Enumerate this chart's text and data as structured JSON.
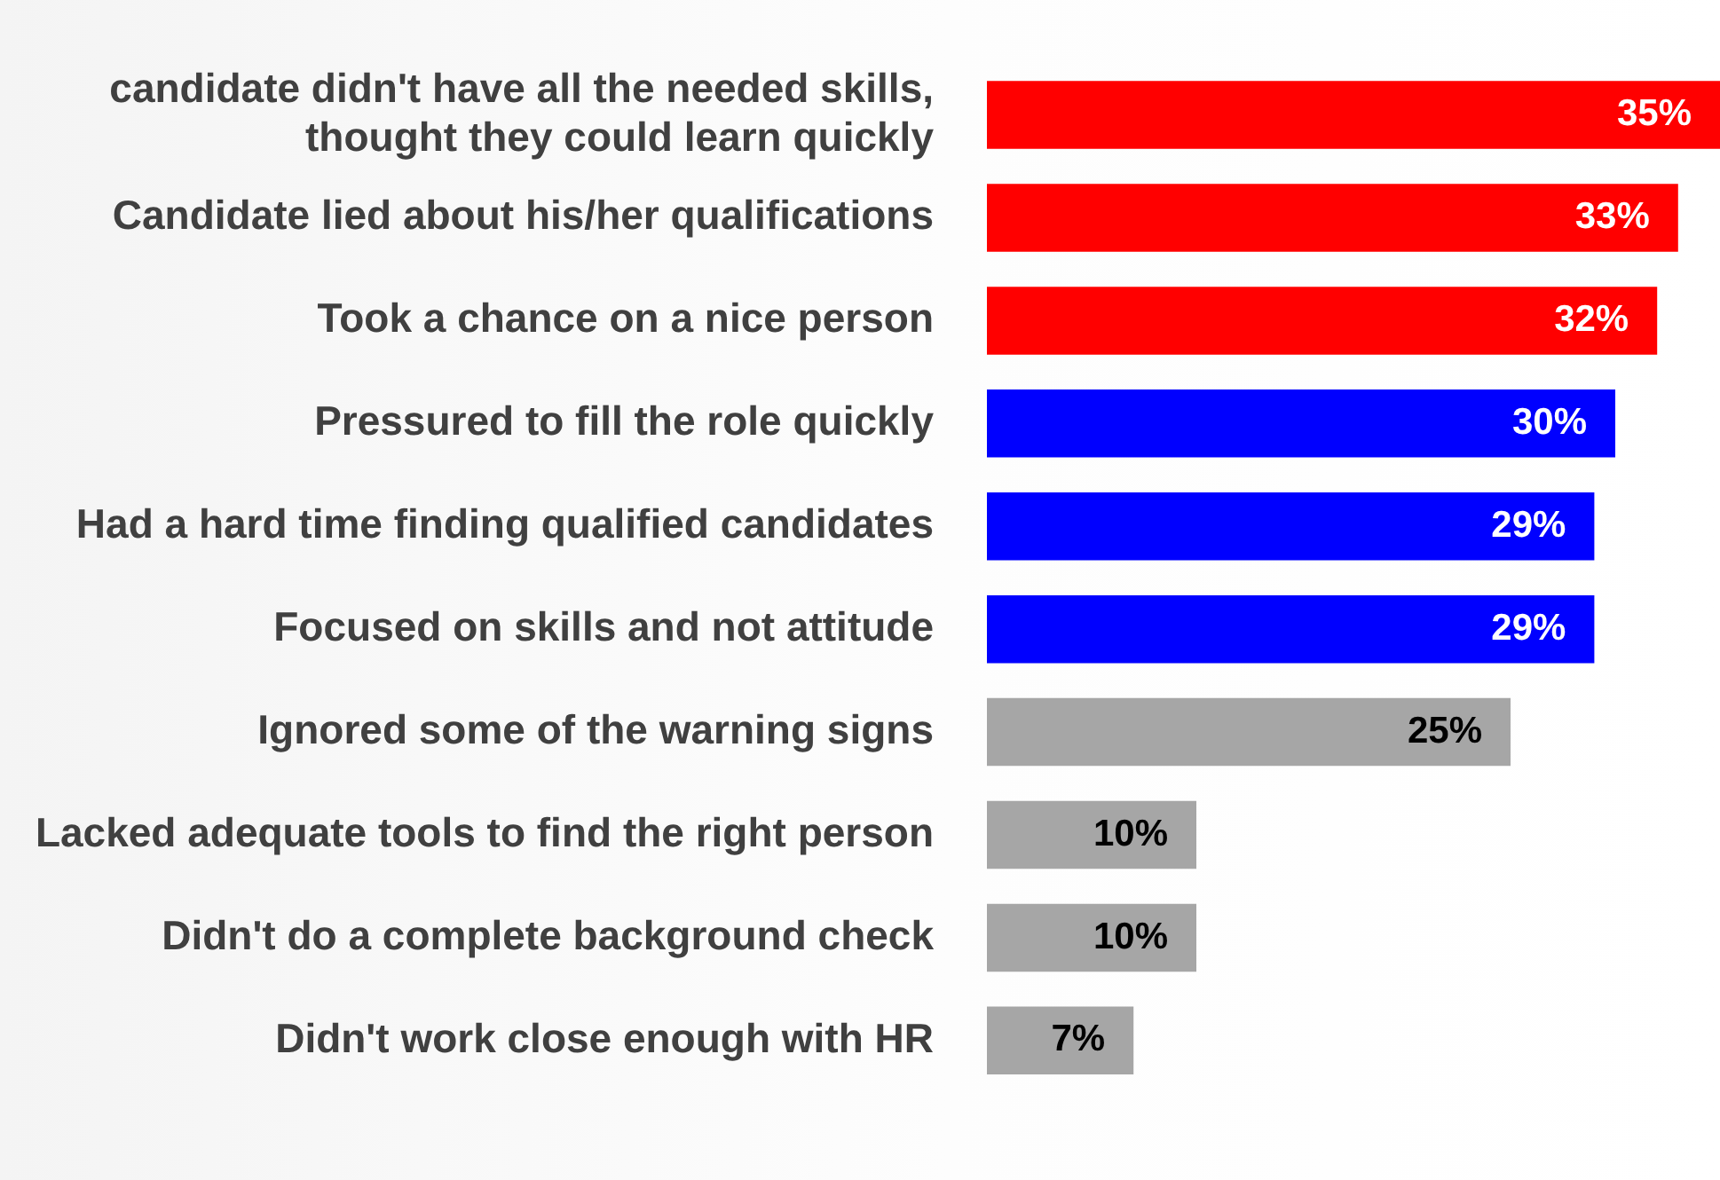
{
  "chart_data": {
    "type": "bar",
    "orientation": "horizontal",
    "legend": false,
    "grid": false,
    "categories": [
      "candidate didn't have all the needed skills, thought they could learn quickly",
      "Candidate lied about his/her qualifications",
      "Took a chance on a nice person",
      "Pressured to fill the role quickly",
      "Had a hard time finding qualified candidates",
      "Focused on skills and not attitude",
      "Ignored some of the warning signs",
      "Lacked adequate tools to find the right person",
      "Didn't do a complete background check",
      "Didn't work close enough with HR"
    ],
    "values": [
      35,
      33,
      32,
      30,
      29,
      29,
      25,
      10,
      10,
      7
    ],
    "colors": [
      "#ff0000",
      "#ff0000",
      "#ff0000",
      "#0000ff",
      "#0000ff",
      "#0000ff",
      "#a6a6a6",
      "#a6a6a6",
      "#a6a6a6",
      "#a6a6a6"
    ],
    "value_labels": [
      "35%",
      "33%",
      "32%",
      "30%",
      "29%",
      "29%",
      "25%",
      "10%",
      "10%",
      "7%"
    ]
  }
}
